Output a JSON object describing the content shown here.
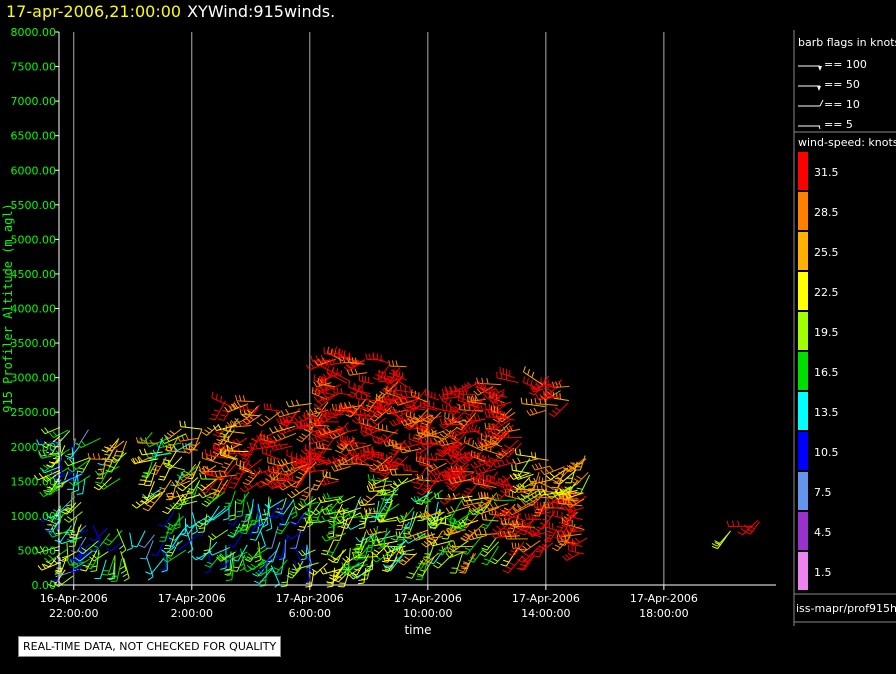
{
  "header": {
    "timestamp": "17-apr-2006,21:00:00",
    "product": "XYWind:915winds."
  },
  "notice": "REAL-TIME DATA, NOT CHECKED FOR QUALITY",
  "source_label": "iss-mapr/prof915h",
  "barb_legend": {
    "title": "barb flags in knots",
    "items": [
      "== 100",
      "== 50",
      "== 10",
      "== 5"
    ]
  },
  "speed_legend": {
    "title": "wind-speed: knots",
    "bins": [
      {
        "label": "31.5",
        "color": "#ff0000"
      },
      {
        "label": "28.5",
        "color": "#ff8000"
      },
      {
        "label": "25.5",
        "color": "#ffb000"
      },
      {
        "label": "22.5",
        "color": "#ffff00"
      },
      {
        "label": "19.5",
        "color": "#a0ff00"
      },
      {
        "label": "16.5",
        "color": "#00e000"
      },
      {
        "label": "13.5",
        "color": "#00ffff"
      },
      {
        "label": "10.5",
        "color": "#0000ff"
      },
      {
        "label": "7.5",
        "color": "#6495ed"
      },
      {
        "label": "4.5",
        "color": "#9932cc"
      },
      {
        "label": "1.5",
        "color": "#ee82ee"
      }
    ]
  },
  "chart_data": {
    "type": "scatter",
    "subtype": "wind-barb time-height",
    "title": "",
    "xlabel": "time",
    "ylabel": "915 Profiler Altitude (m agl)",
    "y_ticks": [
      "0.00",
      "500.00",
      "1000.00",
      "1500.00",
      "2000.00",
      "2500.00",
      "3000.00",
      "3500.00",
      "4000.00",
      "4500.00",
      "5000.00",
      "5500.00",
      "6000.00",
      "6500.00",
      "7000.00",
      "7500.00",
      "8000.00"
    ],
    "ylim": [
      0,
      8000
    ],
    "xlim_hours": [
      -0.5,
      23.8
    ],
    "x_ticks": [
      {
        "hour": 0,
        "line1": "16-Apr-2006",
        "line2": "22:00:00"
      },
      {
        "hour": 4,
        "line1": "17-Apr-2006",
        "line2": "2:00:00"
      },
      {
        "hour": 8,
        "line1": "17-Apr-2006",
        "line2": "6:00:00"
      },
      {
        "hour": 12,
        "line1": "17-Apr-2006",
        "line2": "10:00:00"
      },
      {
        "hour": 16,
        "line1": "17-Apr-2006",
        "line2": "14:00:00"
      },
      {
        "hour": 20,
        "line1": "17-Apr-2006",
        "line2": "18:00:00"
      }
    ],
    "grid": "vertical",
    "wind_regions": [
      {
        "hours": [
          -1.0,
          0.6
        ],
        "alt": [
          100,
          2300
        ],
        "speed": [
          8,
          24
        ],
        "dir": 220
      },
      {
        "hours": [
          0.6,
          1.9
        ],
        "alt": [
          300,
          900
        ],
        "speed": [
          10,
          22
        ],
        "dir": 200
      },
      {
        "hours": [
          0.9,
          1.8
        ],
        "alt": [
          1500,
          2150
        ],
        "speed": [
          14,
          28
        ],
        "dir": 230
      },
      {
        "hours": [
          2.4,
          3.2
        ],
        "alt": [
          350,
          800
        ],
        "speed": [
          6,
          16
        ],
        "dir": 180
      },
      {
        "hours": [
          2.6,
          4.4
        ],
        "alt": [
          1200,
          2300
        ],
        "speed": [
          14,
          30
        ],
        "dir": 240
      },
      {
        "hours": [
          3.2,
          4.2
        ],
        "alt": [
          500,
          1100
        ],
        "speed": [
          10,
          20
        ],
        "dir": 200
      },
      {
        "hours": [
          4.5,
          6.0
        ],
        "alt": [
          400,
          1400
        ],
        "speed": [
          10,
          20
        ],
        "dir": 210
      },
      {
        "hours": [
          4.8,
          6.4
        ],
        "alt": [
          1500,
          2800
        ],
        "speed": [
          20,
          34
        ],
        "dir": 250
      },
      {
        "hours": [
          6.0,
          8.0
        ],
        "alt": [
          200,
          1300
        ],
        "speed": [
          8,
          20
        ],
        "dir": 200
      },
      {
        "hours": [
          6.8,
          9.0
        ],
        "alt": [
          1400,
          2700
        ],
        "speed": [
          26,
          36
        ],
        "dir": 250
      },
      {
        "hours": [
          8.0,
          10.2
        ],
        "alt": [
          200,
          1300
        ],
        "speed": [
          14,
          24
        ],
        "dir": 220
      },
      {
        "hours": [
          8.6,
          11.4
        ],
        "alt": [
          1600,
          3300
        ],
        "speed": [
          28,
          36
        ],
        "dir": 260
      },
      {
        "hours": [
          10.2,
          12.6
        ],
        "alt": [
          300,
          1600
        ],
        "speed": [
          12,
          26
        ],
        "dir": 230
      },
      {
        "hours": [
          11.6,
          13.4
        ],
        "alt": [
          1500,
          2900
        ],
        "speed": [
          28,
          36
        ],
        "dir": 250
      },
      {
        "hours": [
          12.6,
          15.2
        ],
        "alt": [
          450,
          1300
        ],
        "speed": [
          16,
          30
        ],
        "dir": 240
      },
      {
        "hours": [
          13.0,
          15.2
        ],
        "alt": [
          1300,
          3000
        ],
        "speed": [
          28,
          36
        ],
        "dir": 260
      },
      {
        "hours": [
          14.8,
          17.4
        ],
        "alt": [
          420,
          1400
        ],
        "speed": [
          28,
          36
        ],
        "dir": 250
      },
      {
        "hours": [
          15.8,
          16.8
        ],
        "alt": [
          2500,
          3100
        ],
        "speed": [
          26,
          34
        ],
        "dir": 260
      },
      {
        "hours": [
          15.4,
          17.6
        ],
        "alt": [
          1200,
          1900
        ],
        "speed": [
          20,
          30
        ],
        "dir": 240
      },
      {
        "hours": [
          22.0,
          22.3
        ],
        "alt": [
          500,
          800
        ],
        "speed": [
          16,
          24
        ],
        "dir": 230
      },
      {
        "hours": [
          23.0,
          23.3
        ],
        "alt": [
          600,
          1000
        ],
        "speed": [
          26,
          34
        ],
        "dir": 240
      }
    ]
  }
}
